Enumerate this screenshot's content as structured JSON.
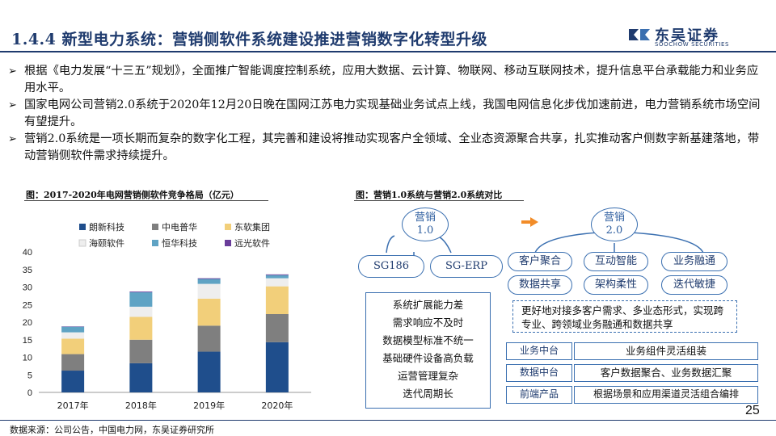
{
  "title": "1.4.4 新型电力系统：营销侧软件系统建设推进营销数字化转型升级",
  "logo": {
    "cn": "东吴证券",
    "en": "SOOCHOW SECURITIES"
  },
  "bullets": [
    "根据《电力发展“十三五”规划》，全面推广智能调度控制系统，应用大数据、云计算、物联网、移动互联网技术，提升信息平台承载能力和业务应用水平。",
    "国家电网公司营销2.0系统于2020年12月20日晚在国网江苏电力实现基础业务试点上线，我国电网信息化步伐加速前进，电力营销系统市场空间有望提升。",
    "营销2.0系统是一项长期而复杂的数字化工程，其完善和建设将推动实现客户全领域、全业态资源聚合共享，扎实推动客户侧数字新基建落地，带动营销侧软件需求持续提升。"
  ],
  "bullet_marker": "➢",
  "chart_caption": "图：2017-2020年电网营销侧软件竞争格局（亿元）",
  "diagram_caption": "图：营销1.0系统与营销2.0系统对比",
  "chart_data": {
    "type": "bar",
    "stacked": true,
    "title": "",
    "categories": [
      "2017年",
      "2018年",
      "2019年",
      "2020年"
    ],
    "ylim": [
      0,
      40
    ],
    "yticks": [
      0,
      5,
      10,
      15,
      20,
      25,
      30,
      35,
      40
    ],
    "legend_position": "top",
    "series": [
      {
        "name": "朗新科技",
        "color": "#1f4e8c",
        "values": [
          6.2,
          8.3,
          11.6,
          14.3
        ]
      },
      {
        "name": "中电普华",
        "color": "#7f7f7f",
        "values": [
          4.7,
          6.7,
          7.4,
          8.0
        ]
      },
      {
        "name": "东软集团",
        "color": "#f2cf7a",
        "values": [
          4.4,
          6.5,
          7.7,
          7.9
        ]
      },
      {
        "name": "海颐软件",
        "color": "#eeeeee",
        "values": [
          1.8,
          2.9,
          4.2,
          2.3
        ]
      },
      {
        "name": "恒华科技",
        "color": "#5fa3c4",
        "values": [
          1.6,
          4.1,
          1.4,
          0.9
        ]
      },
      {
        "name": "远光软件",
        "color": "#6a3d9a",
        "values": [
          0.1,
          0.2,
          0.2,
          0.2
        ]
      }
    ]
  },
  "diagram": {
    "old": {
      "name": "营销\n1.0",
      "line1": "营销",
      "line2": "1.0",
      "nodes": [
        "SG186",
        "SG-ERP"
      ],
      "issues": [
        "系统扩展能力差",
        "需求响应不及时",
        "数据模型标准不统一",
        "基础硬件设备高负载",
        "运营管理复杂",
        "迭代周期长"
      ]
    },
    "arrow": "➡",
    "new": {
      "line1": "营销",
      "line2": "2.0",
      "features": [
        "客户聚合",
        "互动智能",
        "业务融通",
        "数据共享",
        "架构柔性",
        "迭代敏捷"
      ],
      "summary": "更好地对接多客户需求、多业态形式，实现跨专业、跨领域业务融通和数据共享",
      "layers": [
        {
          "label": "业务中台",
          "desc": "业务组件灵活组装"
        },
        {
          "label": "数据中台",
          "desc": "客户数据聚合、业务数据汇聚"
        },
        {
          "label": "前端产品",
          "desc": "根据场景和应用渠道灵活组合编排"
        }
      ]
    }
  },
  "source": "数据来源：公司公告，中国电力网，东吴证券研究所",
  "page_number": "25",
  "colors": {
    "brand": "#1f3b6e",
    "accent": "#3a6fb0",
    "arrow": "#f28c28"
  }
}
